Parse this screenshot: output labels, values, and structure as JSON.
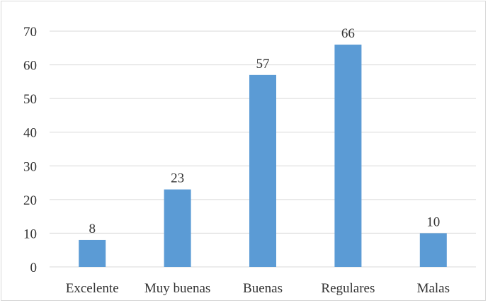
{
  "chart_data": {
    "type": "bar",
    "title": "",
    "xlabel": "",
    "ylabel": "",
    "categories": [
      "Excelente",
      "Muy buenas",
      "Buenas",
      "Regulares",
      "Malas"
    ],
    "values": [
      8,
      23,
      57,
      66,
      10
    ],
    "ylim": [
      0,
      70
    ],
    "yticks": [
      0,
      10,
      20,
      30,
      40,
      50,
      60,
      70
    ],
    "grid": true,
    "legend": "none",
    "data_labels": true,
    "colors": {
      "bar": "#5b9bd5",
      "grid": "#d9d9d9",
      "text": "#333333",
      "frame": "#d9d9d9"
    }
  }
}
